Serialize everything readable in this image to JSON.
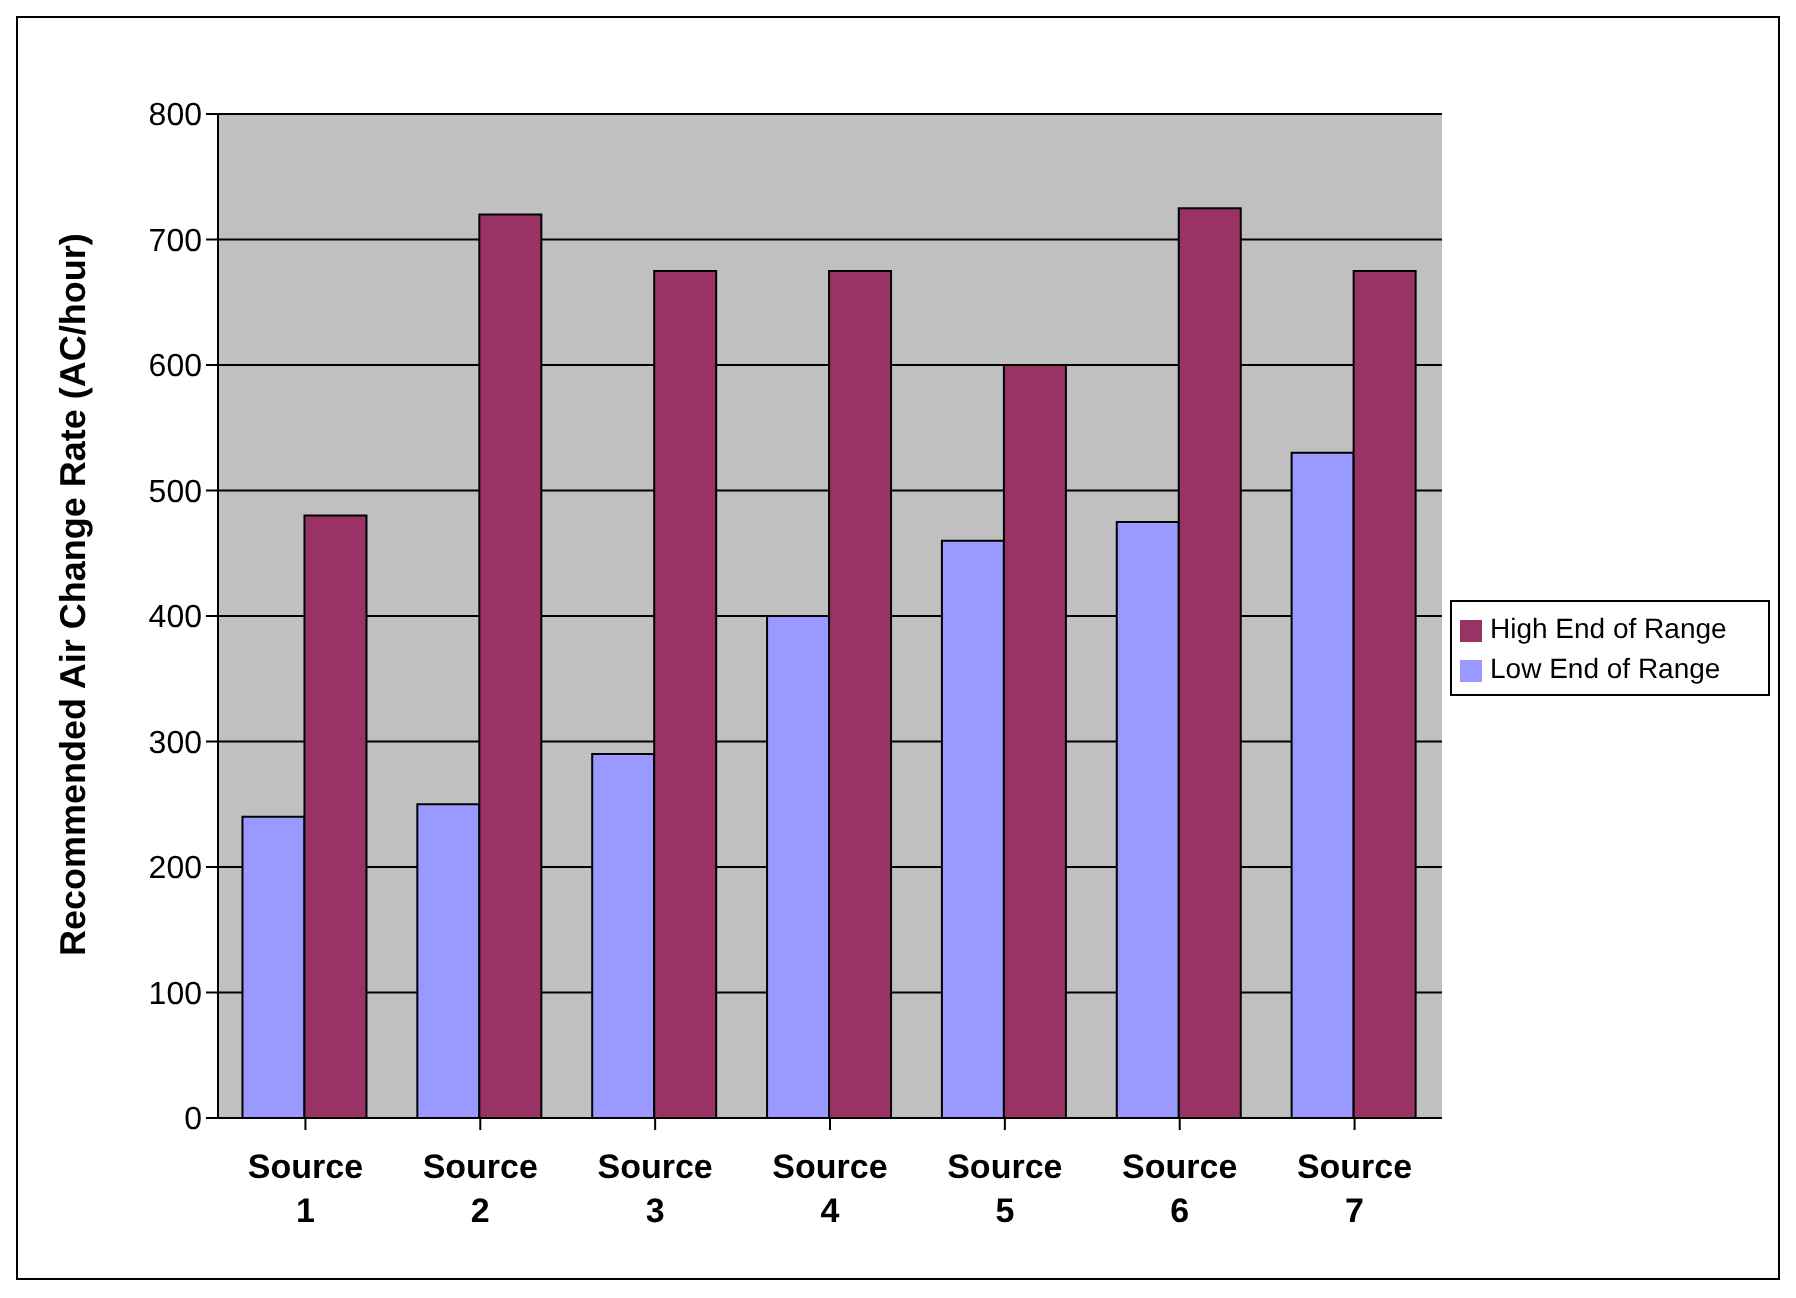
{
  "chart_data": {
    "type": "bar",
    "ylabel": "Recommended Air Change Rate (AC/hour)",
    "categories": [
      "Source 1",
      "Source 2",
      "Source 3",
      "Source 4",
      "Source 5",
      "Source 6",
      "Source 7"
    ],
    "series": [
      {
        "name": "Low End of Range",
        "color": "#9999ff",
        "values": [
          240,
          250,
          290,
          400,
          460,
          475,
          530
        ]
      },
      {
        "name": "High End of Range",
        "color": "#993366",
        "values": [
          480,
          720,
          675,
          675,
          600,
          725,
          675
        ]
      }
    ],
    "ylim": [
      0,
      800
    ],
    "yticks": [
      0,
      100,
      200,
      300,
      400,
      500,
      600,
      700,
      800
    ],
    "grid": "y",
    "legend": "right"
  }
}
